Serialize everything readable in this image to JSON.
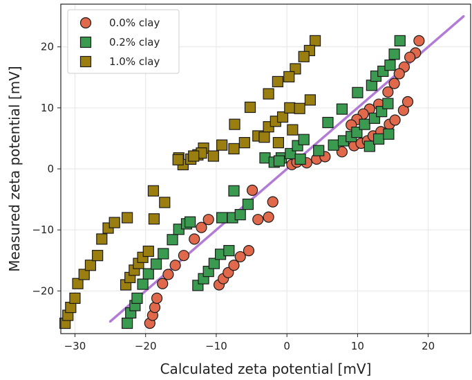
{
  "chart_data": {
    "type": "scatter",
    "xlabel": "Calculated zeta potential [mV]",
    "ylabel": "Measured zeta potential [mV]",
    "xlim": [
      -32,
      26
    ],
    "ylim": [
      -27,
      27
    ],
    "xticks": [
      -30,
      -20,
      -10,
      0,
      10,
      20
    ],
    "yticks": [
      -20,
      -10,
      0,
      10,
      20
    ],
    "grid": true,
    "legend_position": "top-left",
    "series": [
      {
        "name": "0.0% clay",
        "marker": "circle",
        "color": "#e0694b",
        "points": [
          [
            -19.4,
            -25.3
          ],
          [
            -19.0,
            -24.0
          ],
          [
            -18.7,
            -22.7
          ],
          [
            -18.4,
            -21.2
          ],
          [
            -17.6,
            -18.8
          ],
          [
            -16.8,
            -17.3
          ],
          [
            -15.8,
            -15.8
          ],
          [
            -14.6,
            -14.2
          ],
          [
            -13.1,
            -11.5
          ],
          [
            -12.1,
            -9.6
          ],
          [
            -11.1,
            -8.3
          ],
          [
            -9.6,
            -19.0
          ],
          [
            -9.0,
            -18.0
          ],
          [
            -8.3,
            -17.0
          ],
          [
            -7.5,
            -15.8
          ],
          [
            -6.6,
            -14.4
          ],
          [
            -5.4,
            -13.4
          ],
          [
            -4.9,
            -3.5
          ],
          [
            -4.1,
            -8.3
          ],
          [
            -2.6,
            -7.9
          ],
          [
            -2.0,
            -5.4
          ],
          [
            0.7,
            0.7
          ],
          [
            1.4,
            1.1
          ],
          [
            2.8,
            1.0
          ],
          [
            4.2,
            1.6
          ],
          [
            5.4,
            2.0
          ],
          [
            7.8,
            2.8
          ],
          [
            9.5,
            3.8
          ],
          [
            10.5,
            4.2
          ],
          [
            11.4,
            4.6
          ],
          [
            12.2,
            5.4
          ],
          [
            13.3,
            6.1
          ],
          [
            14.5,
            7.3
          ],
          [
            15.3,
            8.0
          ],
          [
            16.5,
            9.6
          ],
          [
            17.1,
            11.0
          ],
          [
            18.7,
            21.0
          ],
          [
            18.2,
            19.0
          ],
          [
            17.4,
            18.3
          ],
          [
            16.6,
            16.7
          ],
          [
            15.9,
            15.6
          ],
          [
            15.2,
            14.0
          ],
          [
            14.3,
            12.6
          ],
          [
            13.0,
            10.6
          ],
          [
            11.7,
            9.8
          ],
          [
            10.8,
            9.0
          ],
          [
            9.9,
            8.1
          ],
          [
            9.1,
            7.2
          ]
        ]
      },
      {
        "name": "0.2% clay",
        "marker": "square",
        "color": "#3a9a4f",
        "points": [
          [
            -22.6,
            -25.3
          ],
          [
            -22.1,
            -23.6
          ],
          [
            -21.5,
            -22.4
          ],
          [
            -21.2,
            -21.2
          ],
          [
            -20.4,
            -18.9
          ],
          [
            -19.6,
            -17.2
          ],
          [
            -18.5,
            -15.6
          ],
          [
            -17.5,
            -13.9
          ],
          [
            -16.2,
            -11.6
          ],
          [
            -15.3,
            -9.9
          ],
          [
            -14.2,
            -9.0
          ],
          [
            -12.6,
            -19.1
          ],
          [
            -11.8,
            -18.0
          ],
          [
            -11.1,
            -16.8
          ],
          [
            -10.3,
            -15.5
          ],
          [
            -9.4,
            -14.0
          ],
          [
            -8.2,
            -13.4
          ],
          [
            -7.5,
            -3.6
          ],
          [
            -7.7,
            -8.0
          ],
          [
            -6.6,
            -7.5
          ],
          [
            -5.5,
            -5.8
          ],
          [
            -3.1,
            1.8
          ],
          [
            -1.8,
            1.1
          ],
          [
            -0.8,
            1.8
          ],
          [
            0.5,
            2.5
          ],
          [
            1.5,
            3.8
          ],
          [
            2.4,
            4.8
          ],
          [
            4.5,
            3.0
          ],
          [
            5.8,
            7.6
          ],
          [
            6.6,
            3.9
          ],
          [
            8.0,
            4.6
          ],
          [
            9.1,
            5.3
          ],
          [
            9.9,
            6.0
          ],
          [
            11.0,
            7.3
          ],
          [
            12.4,
            8.3
          ],
          [
            13.4,
            9.4
          ],
          [
            14.3,
            10.7
          ],
          [
            10.0,
            12.5
          ],
          [
            12.0,
            13.7
          ],
          [
            12.6,
            15.2
          ],
          [
            13.6,
            16.0
          ],
          [
            14.6,
            17.0
          ],
          [
            15.2,
            18.8
          ],
          [
            16.0,
            21.0
          ],
          [
            7.8,
            9.8
          ],
          [
            11.7,
            3.7
          ],
          [
            13.0,
            4.9
          ],
          [
            14.4,
            5.7
          ],
          [
            -1.1,
            1.3
          ],
          [
            1.9,
            1.6
          ],
          [
            -9.2,
            -8.0
          ],
          [
            -13.7,
            -8.7
          ]
        ]
      },
      {
        "name": "1.0% clay",
        "marker": "square",
        "color": "#9a7f10",
        "points": [
          [
            -31.4,
            -25.3
          ],
          [
            -31.0,
            -24.0
          ],
          [
            -30.6,
            -22.7
          ],
          [
            -30.0,
            -21.2
          ],
          [
            -29.6,
            -18.8
          ],
          [
            -28.7,
            -17.3
          ],
          [
            -27.8,
            -15.8
          ],
          [
            -26.8,
            -14.2
          ],
          [
            -26.2,
            -11.5
          ],
          [
            -25.3,
            -9.7
          ],
          [
            -24.4,
            -8.8
          ],
          [
            -22.8,
            -19.0
          ],
          [
            -22.2,
            -17.8
          ],
          [
            -21.6,
            -16.6
          ],
          [
            -21.0,
            -15.5
          ],
          [
            -20.4,
            -14.5
          ],
          [
            -19.6,
            -13.5
          ],
          [
            -18.9,
            -3.6
          ],
          [
            -22.6,
            -8.0
          ],
          [
            -18.8,
            -8.2
          ],
          [
            -17.3,
            -5.5
          ],
          [
            -15.3,
            1.8
          ],
          [
            -14.7,
            0.7
          ],
          [
            -13.6,
            1.6
          ],
          [
            -12.6,
            2.3
          ],
          [
            -11.8,
            3.4
          ],
          [
            -10.4,
            2.1
          ],
          [
            -9.2,
            3.9
          ],
          [
            -7.4,
            7.3
          ],
          [
            -6.0,
            4.3
          ],
          [
            -5.2,
            10.1
          ],
          [
            -4.1,
            5.4
          ],
          [
            -2.6,
            6.9
          ],
          [
            -1.6,
            7.8
          ],
          [
            -0.6,
            8.5
          ],
          [
            0.4,
            10.0
          ],
          [
            1.8,
            9.9
          ],
          [
            3.3,
            11.3
          ],
          [
            4.0,
            21.0
          ],
          [
            3.2,
            19.4
          ],
          [
            2.4,
            18.4
          ],
          [
            1.2,
            16.4
          ],
          [
            0.3,
            15.1
          ],
          [
            -1.3,
            14.3
          ],
          [
            -2.6,
            12.3
          ],
          [
            -1.2,
            4.3
          ],
          [
            0.8,
            6.4
          ],
          [
            -12.1,
            2.6
          ],
          [
            -15.4,
            1.5
          ],
          [
            -7.5,
            3.3
          ],
          [
            -3.2,
            5.2
          ],
          [
            -13.2,
            2.1
          ]
        ]
      }
    ],
    "reference_line": {
      "color": "#b27bd6",
      "from": [
        -25,
        -25
      ],
      "to": [
        25,
        25
      ]
    }
  }
}
